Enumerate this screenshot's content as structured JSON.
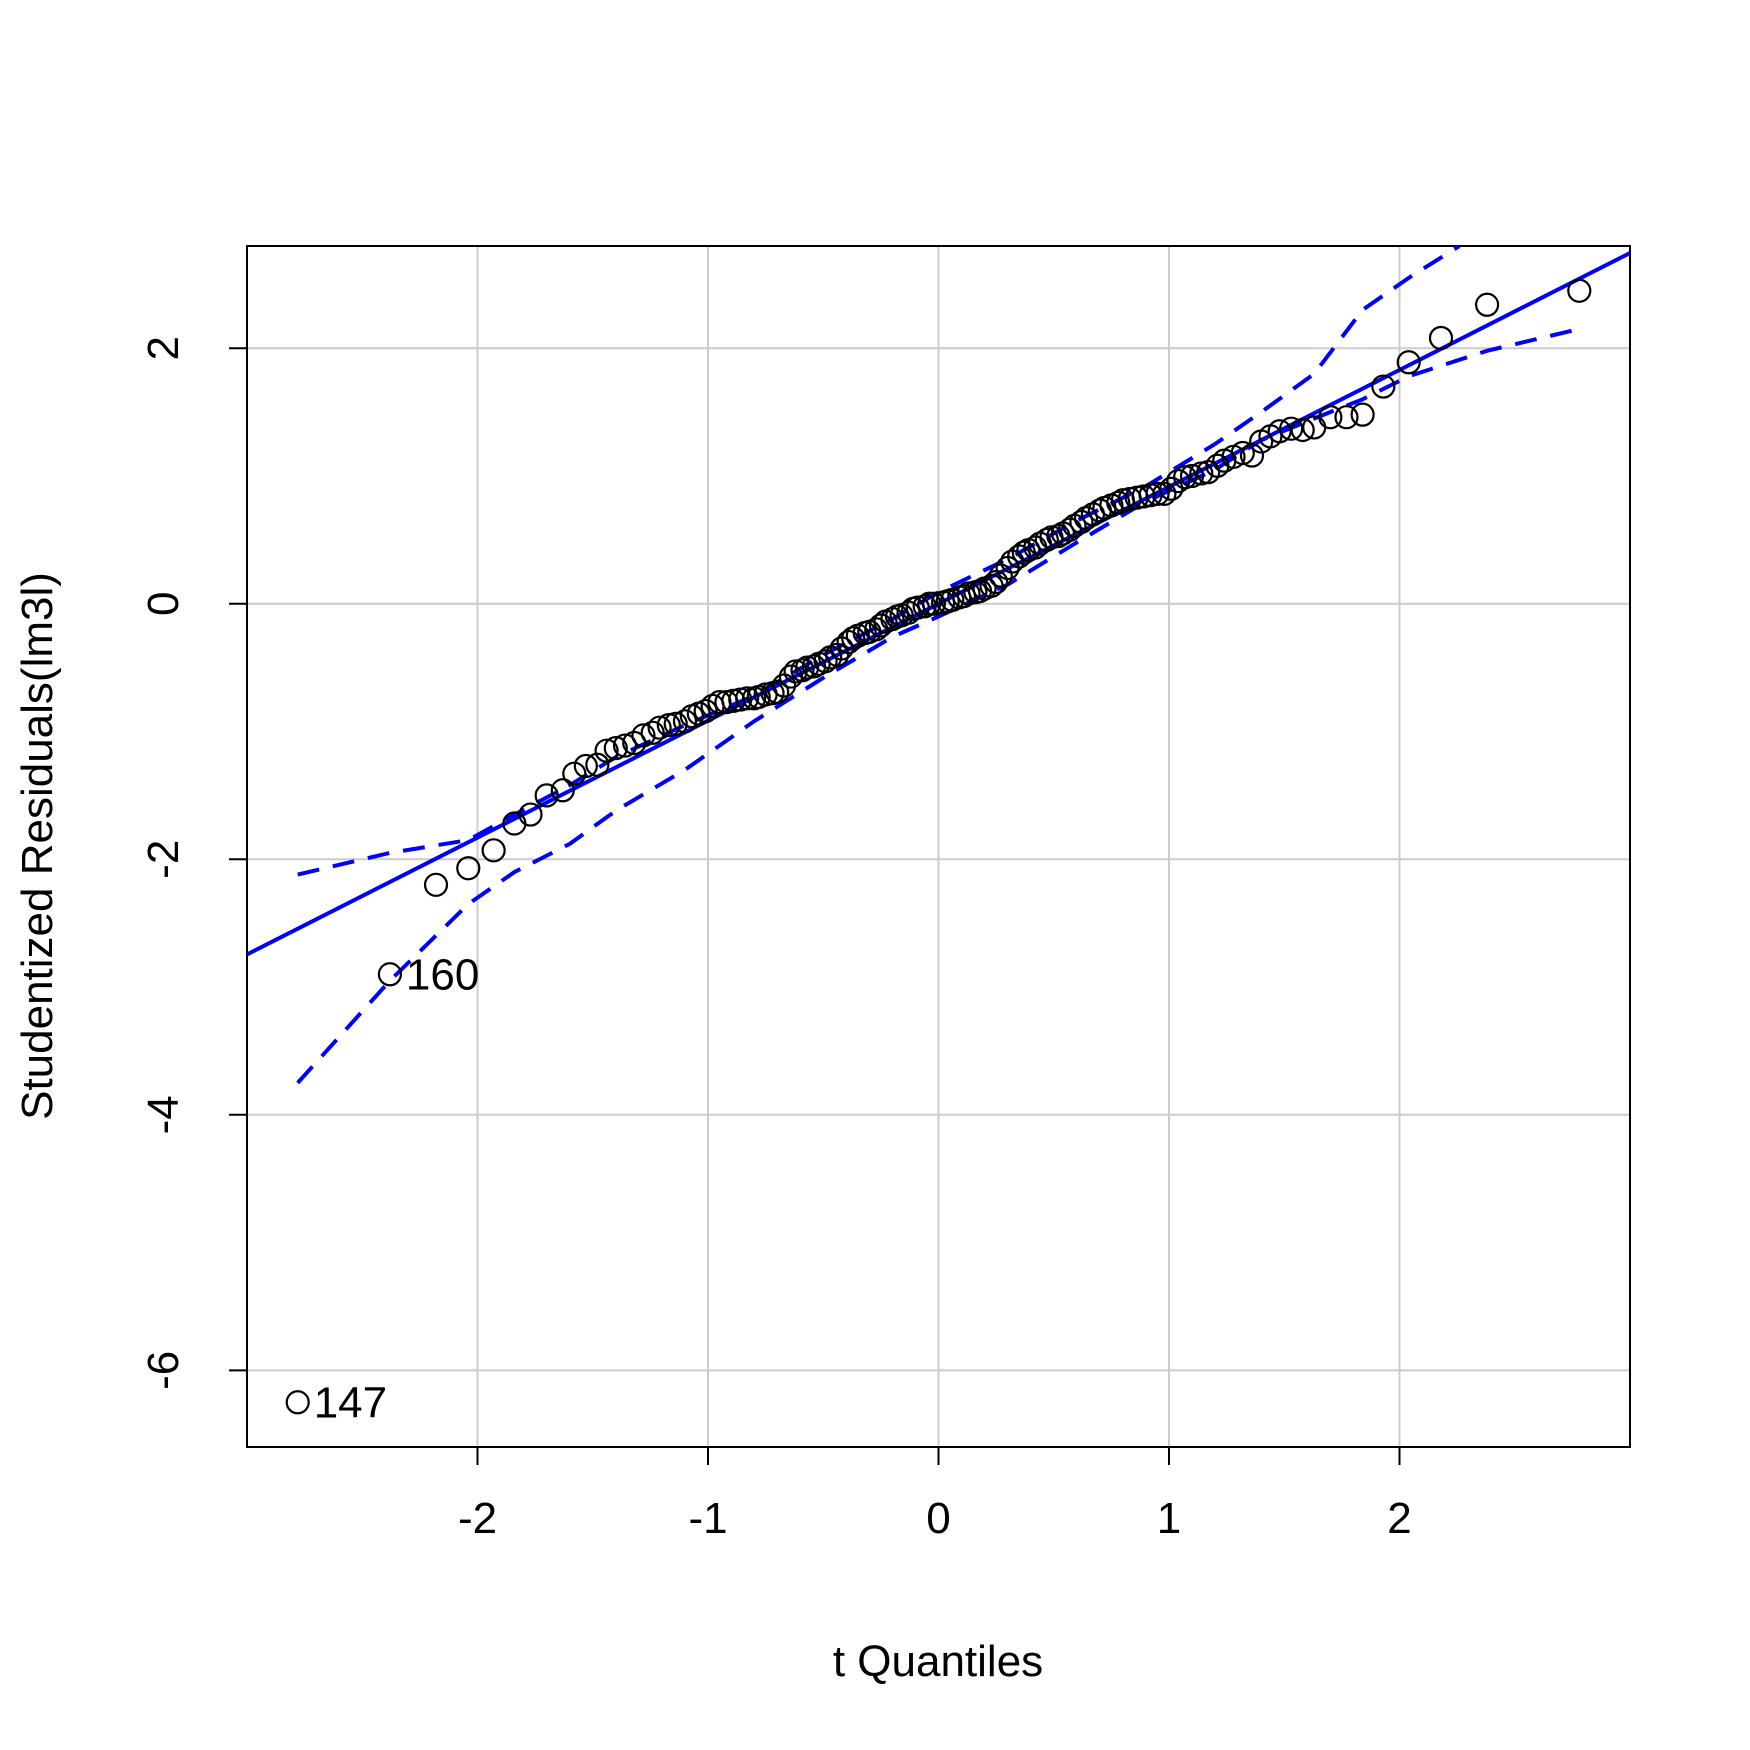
{
  "chart_data": {
    "type": "scatter",
    "title": "",
    "xlabel": "t Quantiles",
    "ylabel": "Studentized Residuals(lm3l)",
    "xlim": [
      -3.0,
      3.0
    ],
    "ylim": [
      -6.6,
      2.8
    ],
    "x_ticks": [
      -2,
      -1,
      0,
      1,
      2
    ],
    "x_tick_labels": [
      "-2",
      "-1",
      "0",
      "1",
      "2"
    ],
    "y_ticks": [
      -6,
      -4,
      -2,
      0,
      2
    ],
    "y_tick_labels": [
      "-6",
      "-4",
      "-2",
      "0",
      "2"
    ],
    "grid": true,
    "colors": {
      "points": "#000000",
      "line": "#0000FF",
      "envelope": "#0000FF",
      "grid": "#CCCCCC"
    },
    "points": [
      {
        "x": -2.78,
        "y": -6.25
      },
      {
        "x": -2.38,
        "y": -2.9
      },
      {
        "x": -2.18,
        "y": -2.2
      },
      {
        "x": -2.04,
        "y": -2.07
      },
      {
        "x": -1.93,
        "y": -1.93
      },
      {
        "x": -1.84,
        "y": -1.72
      },
      {
        "x": -1.77,
        "y": -1.65
      },
      {
        "x": -1.7,
        "y": -1.5
      },
      {
        "x": -1.63,
        "y": -1.46
      },
      {
        "x": -1.58,
        "y": -1.33
      },
      {
        "x": -1.53,
        "y": -1.27
      },
      {
        "x": -1.48,
        "y": -1.26
      },
      {
        "x": -1.44,
        "y": -1.15
      },
      {
        "x": -1.4,
        "y": -1.13
      },
      {
        "x": -1.36,
        "y": -1.11
      },
      {
        "x": -1.32,
        "y": -1.09
      },
      {
        "x": -1.28,
        "y": -1.03
      },
      {
        "x": -1.24,
        "y": -1.01
      },
      {
        "x": -1.21,
        "y": -0.97
      },
      {
        "x": -1.17,
        "y": -0.95
      },
      {
        "x": -1.14,
        "y": -0.94
      },
      {
        "x": -1.1,
        "y": -0.92
      },
      {
        "x": -1.07,
        "y": -0.88
      },
      {
        "x": -1.04,
        "y": -0.86
      },
      {
        "x": -1.01,
        "y": -0.84
      },
      {
        "x": -0.98,
        "y": -0.8
      },
      {
        "x": -0.95,
        "y": -0.77
      },
      {
        "x": -0.92,
        "y": -0.77
      },
      {
        "x": -0.89,
        "y": -0.76
      },
      {
        "x": -0.86,
        "y": -0.75
      },
      {
        "x": -0.83,
        "y": -0.74
      },
      {
        "x": -0.8,
        "y": -0.74
      },
      {
        "x": -0.78,
        "y": -0.73
      },
      {
        "x": -0.75,
        "y": -0.71
      },
      {
        "x": -0.72,
        "y": -0.7
      },
      {
        "x": -0.7,
        "y": -0.69
      },
      {
        "x": -0.67,
        "y": -0.64
      },
      {
        "x": -0.64,
        "y": -0.57
      },
      {
        "x": -0.62,
        "y": -0.53
      },
      {
        "x": -0.59,
        "y": -0.52
      },
      {
        "x": -0.57,
        "y": -0.5
      },
      {
        "x": -0.54,
        "y": -0.49
      },
      {
        "x": -0.52,
        "y": -0.47
      },
      {
        "x": -0.49,
        "y": -0.45
      },
      {
        "x": -0.47,
        "y": -0.42
      },
      {
        "x": -0.44,
        "y": -0.4
      },
      {
        "x": -0.42,
        "y": -0.35
      },
      {
        "x": -0.39,
        "y": -0.3
      },
      {
        "x": -0.37,
        "y": -0.27
      },
      {
        "x": -0.35,
        "y": -0.25
      },
      {
        "x": -0.32,
        "y": -0.23
      },
      {
        "x": -0.3,
        "y": -0.22
      },
      {
        "x": -0.27,
        "y": -0.2
      },
      {
        "x": -0.25,
        "y": -0.17
      },
      {
        "x": -0.23,
        "y": -0.14
      },
      {
        "x": -0.2,
        "y": -0.12
      },
      {
        "x": -0.18,
        "y": -0.1
      },
      {
        "x": -0.16,
        "y": -0.09
      },
      {
        "x": -0.13,
        "y": -0.07
      },
      {
        "x": -0.11,
        "y": -0.04
      },
      {
        "x": -0.09,
        "y": -0.03
      },
      {
        "x": -0.06,
        "y": -0.02
      },
      {
        "x": -0.04,
        "y": 0.0
      },
      {
        "x": -0.02,
        "y": 0.0
      },
      {
        "x": 0.02,
        "y": 0.01
      },
      {
        "x": 0.04,
        "y": 0.02
      },
      {
        "x": 0.06,
        "y": 0.03
      },
      {
        "x": 0.09,
        "y": 0.05
      },
      {
        "x": 0.11,
        "y": 0.06
      },
      {
        "x": 0.13,
        "y": 0.08
      },
      {
        "x": 0.16,
        "y": 0.09
      },
      {
        "x": 0.18,
        "y": 0.1
      },
      {
        "x": 0.2,
        "y": 0.12
      },
      {
        "x": 0.23,
        "y": 0.14
      },
      {
        "x": 0.25,
        "y": 0.17
      },
      {
        "x": 0.27,
        "y": 0.22
      },
      {
        "x": 0.3,
        "y": 0.28
      },
      {
        "x": 0.32,
        "y": 0.33
      },
      {
        "x": 0.35,
        "y": 0.37
      },
      {
        "x": 0.37,
        "y": 0.4
      },
      {
        "x": 0.39,
        "y": 0.42
      },
      {
        "x": 0.42,
        "y": 0.44
      },
      {
        "x": 0.44,
        "y": 0.47
      },
      {
        "x": 0.47,
        "y": 0.5
      },
      {
        "x": 0.49,
        "y": 0.52
      },
      {
        "x": 0.52,
        "y": 0.53
      },
      {
        "x": 0.54,
        "y": 0.55
      },
      {
        "x": 0.57,
        "y": 0.58
      },
      {
        "x": 0.59,
        "y": 0.61
      },
      {
        "x": 0.62,
        "y": 0.64
      },
      {
        "x": 0.64,
        "y": 0.67
      },
      {
        "x": 0.67,
        "y": 0.7
      },
      {
        "x": 0.7,
        "y": 0.73
      },
      {
        "x": 0.72,
        "y": 0.75
      },
      {
        "x": 0.75,
        "y": 0.77
      },
      {
        "x": 0.78,
        "y": 0.79
      },
      {
        "x": 0.8,
        "y": 0.81
      },
      {
        "x": 0.83,
        "y": 0.82
      },
      {
        "x": 0.86,
        "y": 0.83
      },
      {
        "x": 0.89,
        "y": 0.84
      },
      {
        "x": 0.92,
        "y": 0.85
      },
      {
        "x": 0.95,
        "y": 0.86
      },
      {
        "x": 0.98,
        "y": 0.86
      },
      {
        "x": 1.01,
        "y": 0.9
      },
      {
        "x": 1.04,
        "y": 0.96
      },
      {
        "x": 1.07,
        "y": 0.99
      },
      {
        "x": 1.1,
        "y": 1.0
      },
      {
        "x": 1.14,
        "y": 1.02
      },
      {
        "x": 1.17,
        "y": 1.03
      },
      {
        "x": 1.21,
        "y": 1.08
      },
      {
        "x": 1.24,
        "y": 1.12
      },
      {
        "x": 1.28,
        "y": 1.15
      },
      {
        "x": 1.32,
        "y": 1.18
      },
      {
        "x": 1.36,
        "y": 1.16
      },
      {
        "x": 1.4,
        "y": 1.27
      },
      {
        "x": 1.44,
        "y": 1.31
      },
      {
        "x": 1.48,
        "y": 1.35
      },
      {
        "x": 1.53,
        "y": 1.37
      },
      {
        "x": 1.58,
        "y": 1.36
      },
      {
        "x": 1.63,
        "y": 1.38
      },
      {
        "x": 1.7,
        "y": 1.46
      },
      {
        "x": 1.77,
        "y": 1.46
      },
      {
        "x": 1.84,
        "y": 1.48
      },
      {
        "x": 1.93,
        "y": 1.7
      },
      {
        "x": 2.04,
        "y": 1.89
      },
      {
        "x": 2.18,
        "y": 2.08
      },
      {
        "x": 2.38,
        "y": 2.34
      },
      {
        "x": 2.78,
        "y": 2.45
      }
    ],
    "point_labels": [
      {
        "x": -2.78,
        "y": -6.25,
        "text": "147"
      },
      {
        "x": -2.38,
        "y": -2.9,
        "text": "160"
      }
    ],
    "reference_line": {
      "intercept": 0.0,
      "slope": 0.915
    },
    "envelope_upper": [
      {
        "x": -2.78,
        "y": -2.12
      },
      {
        "x": -2.38,
        "y": -1.95
      },
      {
        "x": -2.04,
        "y": -1.85
      },
      {
        "x": -1.84,
        "y": -1.65
      },
      {
        "x": -1.6,
        "y": -1.42
      },
      {
        "x": -1.4,
        "y": -1.2
      },
      {
        "x": -1.1,
        "y": -0.95
      },
      {
        "x": -0.8,
        "y": -0.72
      },
      {
        "x": -0.5,
        "y": -0.4
      },
      {
        "x": -0.2,
        "y": -0.12
      },
      {
        "x": 0.0,
        "y": 0.09
      },
      {
        "x": 0.3,
        "y": 0.35
      },
      {
        "x": 0.6,
        "y": 0.65
      },
      {
        "x": 0.9,
        "y": 0.92
      },
      {
        "x": 1.2,
        "y": 1.25
      },
      {
        "x": 1.4,
        "y": 1.5
      },
      {
        "x": 1.63,
        "y": 1.8
      },
      {
        "x": 1.84,
        "y": 2.3
      },
      {
        "x": 2.04,
        "y": 2.55
      },
      {
        "x": 2.26,
        "y": 2.8
      }
    ],
    "envelope_lower": [
      {
        "x": -2.78,
        "y": -3.75
      },
      {
        "x": -2.38,
        "y": -2.95
      },
      {
        "x": -2.04,
        "y": -2.35
      },
      {
        "x": -1.84,
        "y": -2.1
      },
      {
        "x": -1.6,
        "y": -1.88
      },
      {
        "x": -1.4,
        "y": -1.62
      },
      {
        "x": -1.1,
        "y": -1.3
      },
      {
        "x": -0.8,
        "y": -0.92
      },
      {
        "x": -0.5,
        "y": -0.58
      },
      {
        "x": -0.2,
        "y": -0.26
      },
      {
        "x": 0.0,
        "y": -0.1
      },
      {
        "x": 0.3,
        "y": 0.15
      },
      {
        "x": 0.6,
        "y": 0.48
      },
      {
        "x": 0.9,
        "y": 0.8
      },
      {
        "x": 1.2,
        "y": 1.05
      },
      {
        "x": 1.4,
        "y": 1.28
      },
      {
        "x": 1.63,
        "y": 1.45
      },
      {
        "x": 1.84,
        "y": 1.6
      },
      {
        "x": 2.04,
        "y": 1.78
      },
      {
        "x": 2.38,
        "y": 1.98
      },
      {
        "x": 2.78,
        "y": 2.15
      }
    ]
  }
}
